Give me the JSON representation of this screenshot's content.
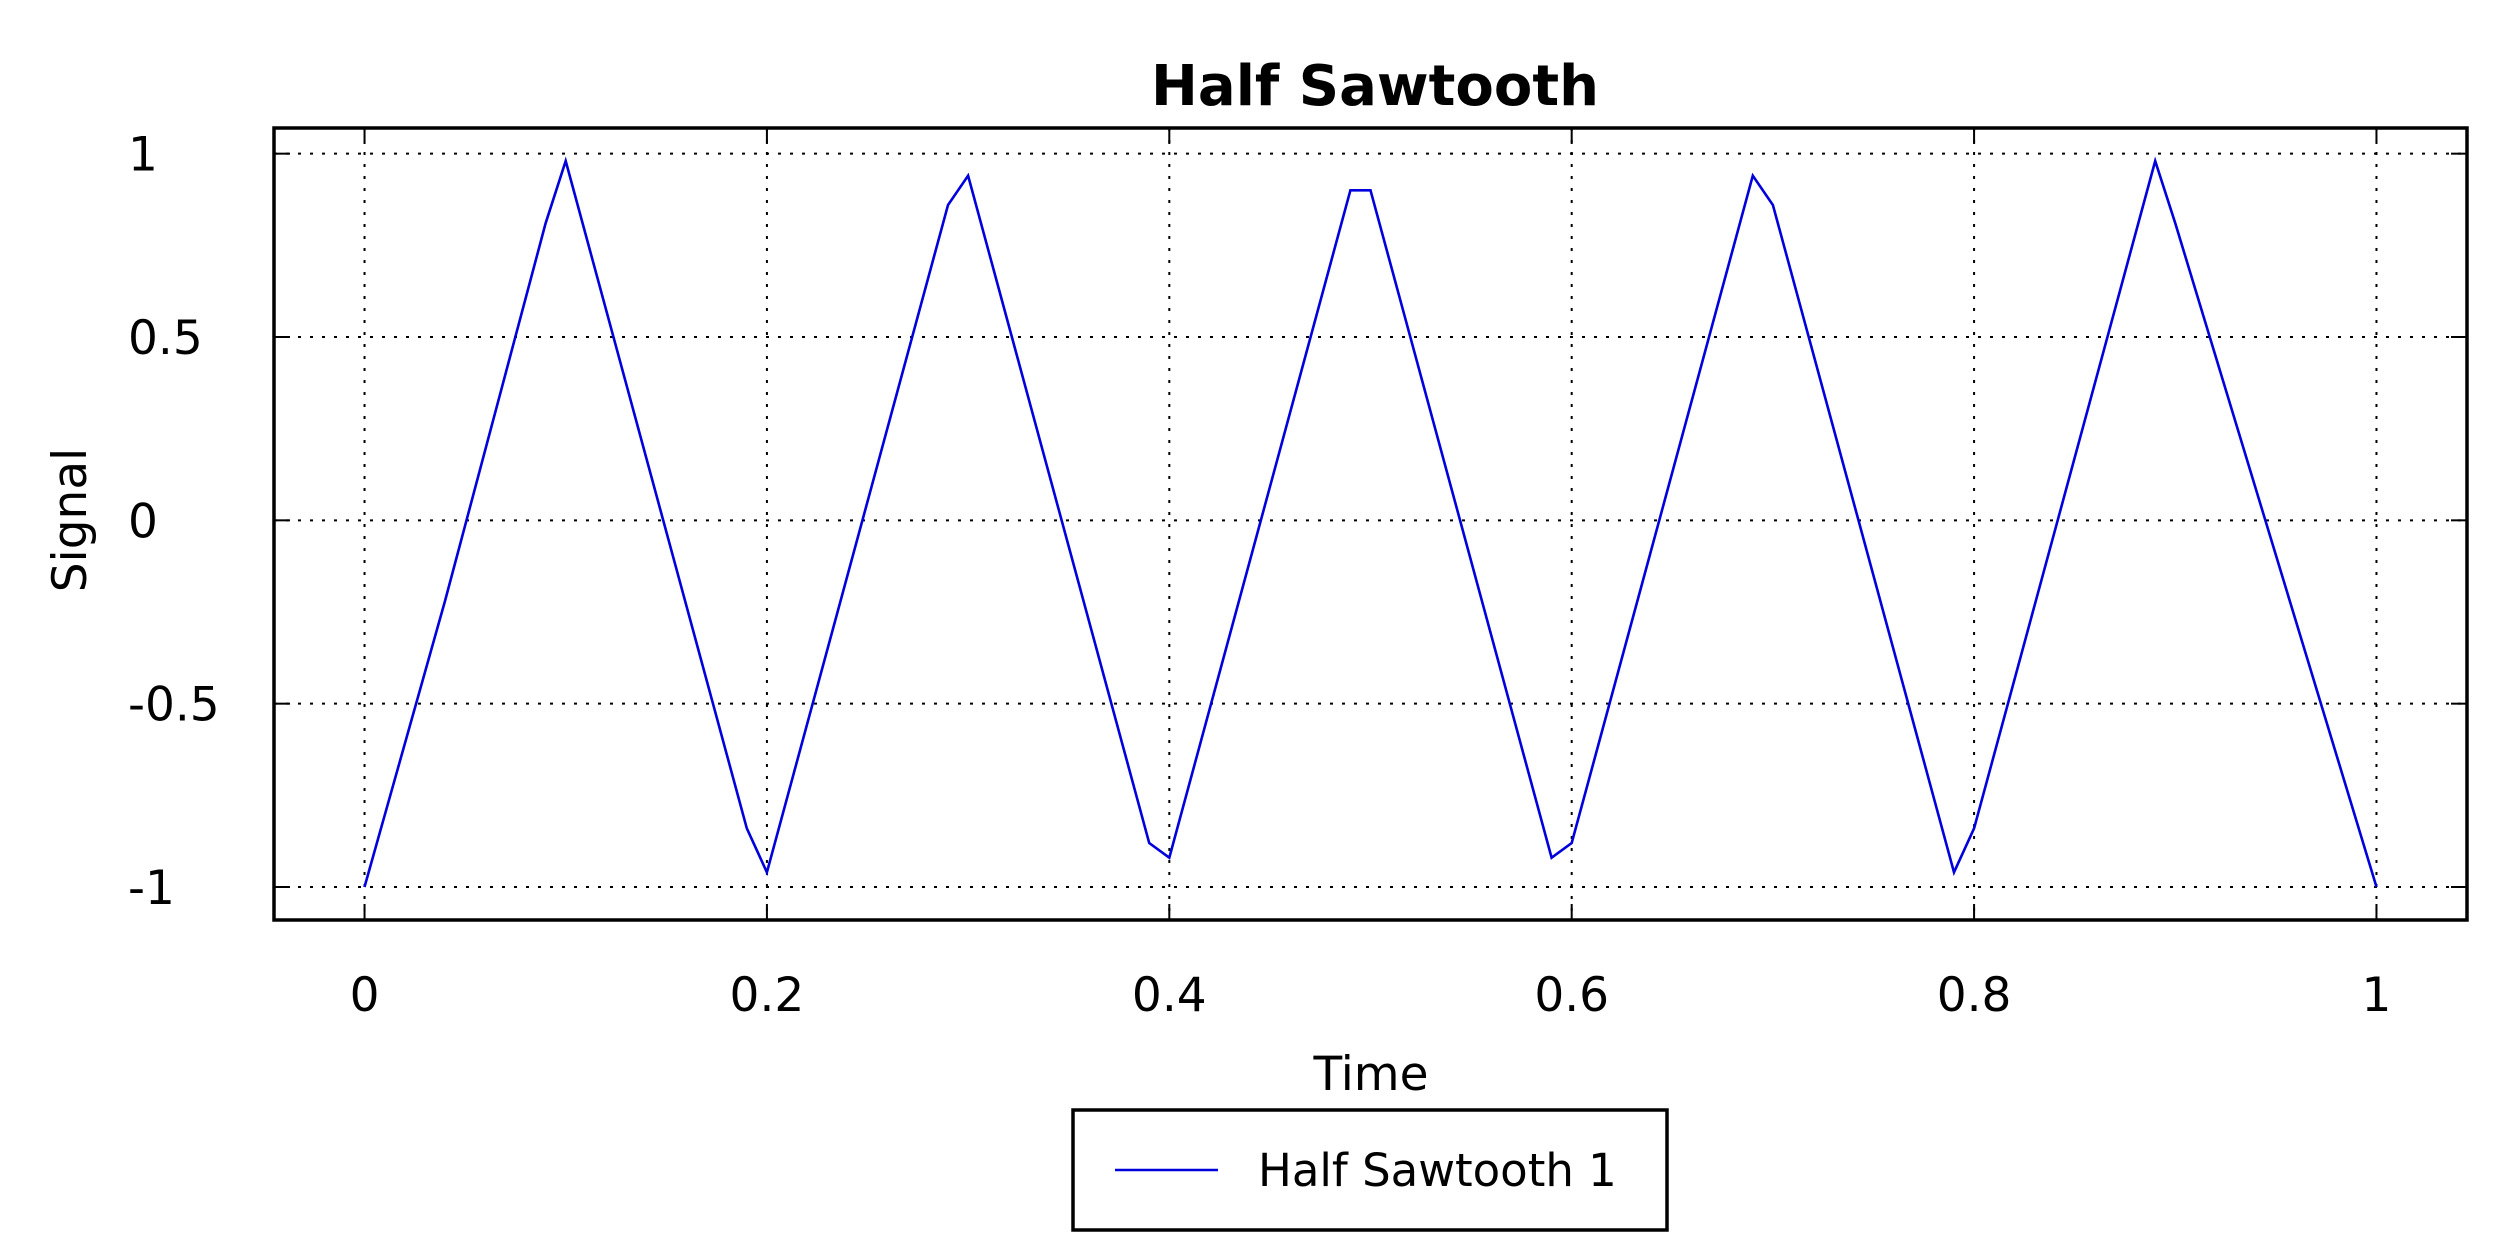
{
  "chart_data": {
    "type": "line",
    "title": "Half Sawtooth",
    "xlabel": "Time",
    "ylabel": "Signal",
    "xlim": [
      -0.045,
      1.045
    ],
    "ylim": [
      -1.09,
      1.07
    ],
    "xticks": [
      0,
      0.2,
      0.4,
      0.6,
      0.8,
      1
    ],
    "xtick_labels": [
      "0",
      "0.2",
      "0.4",
      "0.6",
      "0.8",
      "1"
    ],
    "yticks": [
      -1,
      -0.5,
      0,
      0.5,
      1
    ],
    "ytick_labels": [
      "-1",
      "-0.5",
      "0",
      "0.5",
      "1"
    ],
    "grid": true,
    "legend_position": "bottom-center-outside",
    "series": [
      {
        "name": "Half Sawtooth 1",
        "color": "#0000dd",
        "x": [
          0,
          0.04,
          0.09,
          0.1,
          0.19,
          0.2,
          0.29,
          0.3,
          0.39,
          0.4,
          0.49,
          0.5,
          0.59,
          0.6,
          0.69,
          0.7,
          0.79,
          0.8,
          0.89,
          0.9,
          1.0
        ],
        "y": [
          -1.0,
          -0.22,
          0.81,
          0.98,
          -0.84,
          -0.96,
          0.86,
          0.94,
          -0.88,
          -0.92,
          0.9,
          0.9,
          -0.92,
          -0.88,
          0.94,
          0.86,
          -0.96,
          -0.84,
          0.98,
          0.81,
          -1.0
        ]
      }
    ]
  }
}
